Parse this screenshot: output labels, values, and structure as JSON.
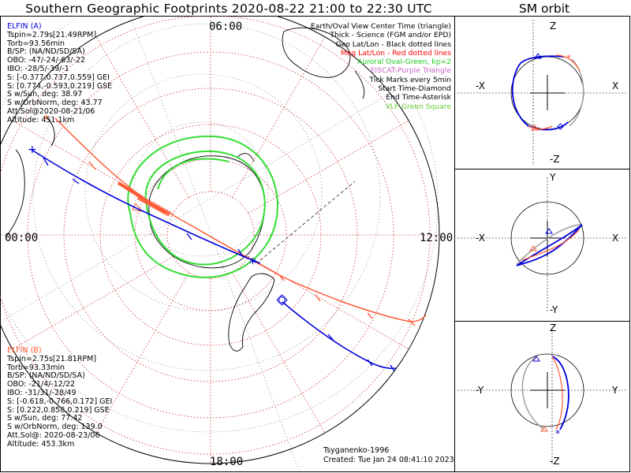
{
  "title": "Southern Geographic Footprints 2020-08-22 21:00 to 22:30 UTC",
  "side_title": "SM orbit",
  "map": {
    "time_labels": {
      "top": "06:00",
      "left": "00:00",
      "right": "12:00",
      "bottom": "18:00"
    },
    "colors": {
      "elfin_a": "#0000dd",
      "elfin_b": "#ff5a36",
      "auroral": "#33dd33",
      "grid": "#cc4444"
    }
  },
  "elfin_a": {
    "name": "ELFIN (A)",
    "lines": [
      "Tspin=2.79s[21.49RPM]",
      "Torb=93.56min",
      "B/SP: (NA/ND/SD/SA)",
      "OBO: -47/-24/-63/-22",
      "IBO: -28/5/-39/-1",
      "S: [-0.377,0.737,0.559] GEI",
      "S: [0.774,-0.593,0.219] GSE",
      "S w/Sun, deg: 38.97",
      "S w/OrbNorm, deg: 43.77",
      "Att.Sol@2020-08-21/06",
      "Altitude: 451.1km"
    ]
  },
  "elfin_b": {
    "name": "ELFIN (B)",
    "lines": [
      "Tspin=2.75s[21.81RPM]",
      "Torb=93.33min",
      "B/SP: (NA/ND/SD/SA)",
      "OBO: -21/4/-12/22",
      "IBO: -31/31/-28/49",
      "S: [-0.618,-0.766,0.172] GEI",
      "S: [0.222,0.858,0.219] GSE",
      "S w/Sun, deg: 77.42",
      "S w/OrbNorm, deg: 139.0",
      "Att.Sol@: 2020-08-23/06",
      "Altitude: 453.3km"
    ]
  },
  "legend": {
    "items": [
      {
        "text": "Earth/Oval View Center Time (triangle)",
        "color": "#000000"
      },
      {
        "text": "Thick - Science (FGM and/or EPD)",
        "color": "#000000"
      },
      {
        "text": "Geo Lat/Lon - Black dotted lines",
        "color": "#000000"
      },
      {
        "text": "Mag Lat/Lon - Red dotted lines",
        "color": "#ff0000"
      },
      {
        "text": "Auroral Oval-Green, kp=2",
        "color": "#22cc22"
      },
      {
        "text": "EISCAT-Purple Triangle",
        "color": "#cc66cc"
      },
      {
        "text": "Tick Marks every 5min",
        "color": "#000000"
      },
      {
        "text": "Start Time-Diamond",
        "color": "#000000"
      },
      {
        "text": "End Time-Asterisk",
        "color": "#000000"
      },
      {
        "text": "VLF-Green Square",
        "color": "#66cc33"
      }
    ]
  },
  "footer": {
    "model": "Tsyganenko-1996",
    "created": "Created: Tue Jan 24 08:41:10 2023"
  },
  "orbit_panels": [
    {
      "top": "Z",
      "bottom": "-Z",
      "left": "-X",
      "right": "X"
    },
    {
      "top": "Y",
      "bottom": "-Y",
      "left": "-X",
      "right": "X"
    },
    {
      "top": "Z",
      "bottom": "-Z",
      "left": "-Y",
      "right": "Y"
    }
  ]
}
